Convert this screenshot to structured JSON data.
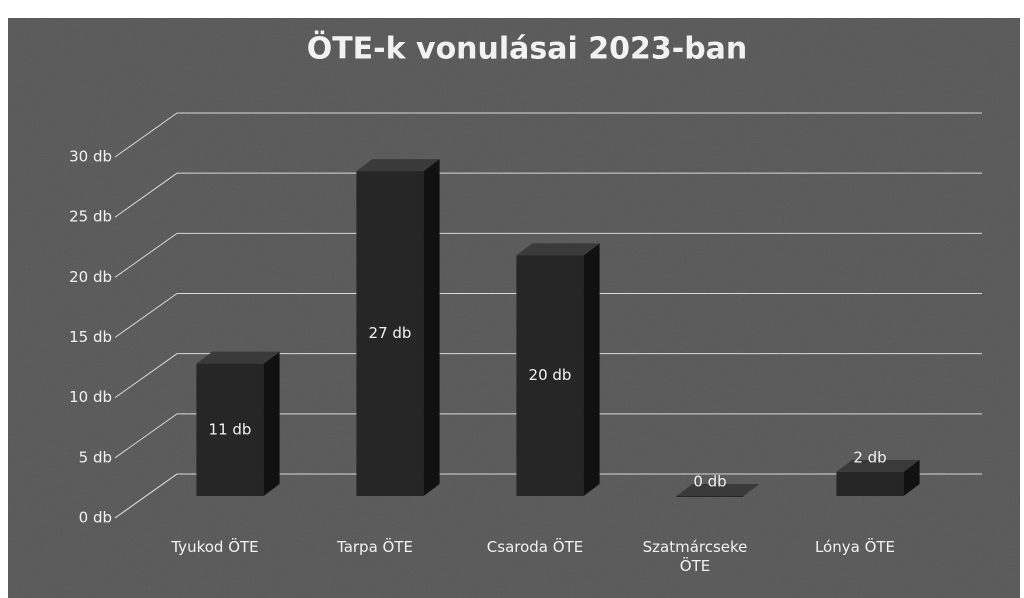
{
  "chart_data": {
    "type": "bar",
    "title": "ÖTE-k vonulásai 2023-ban",
    "categories": [
      "Tyukod ÖTE",
      "Tarpa ÖTE",
      "Csaroda ÖTE",
      "Szatmárcseke ÖTE",
      "Lónya ÖTE"
    ],
    "values": [
      11,
      27,
      20,
      0,
      2
    ],
    "value_labels": [
      "11 db",
      "27 db",
      "20 db",
      "0 db",
      "2 db"
    ],
    "color": "#262626",
    "ylim": [
      0,
      30
    ],
    "yticks": [
      {
        "value": 0,
        "label": "0 db"
      },
      {
        "value": 5,
        "label": "5 db"
      },
      {
        "value": 10,
        "label": "10 db"
      },
      {
        "value": 15,
        "label": "15 db"
      },
      {
        "value": 20,
        "label": "20 db"
      },
      {
        "value": 25,
        "label": "25 db"
      },
      {
        "value": 30,
        "label": "30 db"
      }
    ],
    "grid": true
  }
}
